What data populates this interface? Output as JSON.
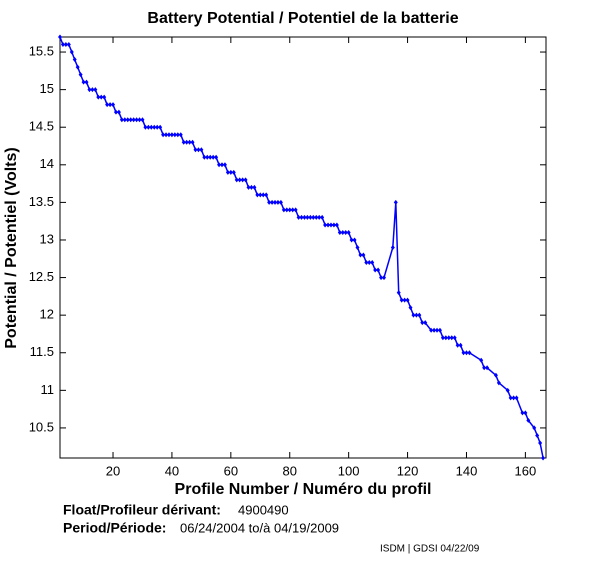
{
  "chart_data": {
    "type": "line",
    "title": "Battery Potential / Potentiel de la batterie",
    "xlabel": "Profile Number / Numéro du profil",
    "ylabel": "Potential / Potentiel (Volts)",
    "xlim": [
      2,
      167
    ],
    "xticks": [
      20,
      40,
      60,
      80,
      100,
      120,
      140,
      160
    ],
    "ylim": [
      10.1,
      15.7
    ],
    "yticks": [
      10.5,
      11,
      11.5,
      12,
      12.5,
      13,
      13.5,
      14,
      14.5,
      15,
      15.5
    ],
    "color": "#0000ff",
    "x": [
      2,
      3,
      4,
      5,
      6,
      7,
      8,
      9,
      10,
      11,
      12,
      13,
      14,
      15,
      16,
      17,
      18,
      19,
      20,
      21,
      22,
      23,
      24,
      25,
      26,
      27,
      28,
      29,
      30,
      31,
      32,
      33,
      34,
      35,
      36,
      37,
      38,
      39,
      40,
      41,
      42,
      43,
      44,
      45,
      46,
      47,
      48,
      49,
      50,
      51,
      52,
      53,
      54,
      55,
      56,
      57,
      58,
      59,
      60,
      61,
      62,
      63,
      64,
      65,
      66,
      67,
      68,
      69,
      70,
      71,
      72,
      73,
      74,
      75,
      76,
      77,
      78,
      79,
      80,
      81,
      82,
      83,
      84,
      85,
      86,
      87,
      88,
      89,
      90,
      91,
      92,
      93,
      94,
      95,
      96,
      97,
      98,
      99,
      100,
      101,
      102,
      103,
      104,
      105,
      106,
      107,
      108,
      109,
      110,
      111,
      112,
      115,
      116,
      117,
      118,
      119,
      120,
      121,
      122,
      123,
      124,
      125,
      126,
      128,
      129,
      130,
      131,
      132,
      133,
      134,
      135,
      136,
      137,
      138,
      139,
      140,
      141,
      145,
      146,
      147,
      150,
      151,
      154,
      155,
      156,
      157,
      159,
      160,
      161,
      163,
      164,
      165,
      166
    ],
    "values": [
      15.7,
      15.6,
      15.6,
      15.6,
      15.5,
      15.4,
      15.3,
      15.2,
      15.1,
      15.1,
      15.0,
      15.0,
      15.0,
      14.9,
      14.9,
      14.9,
      14.8,
      14.8,
      14.8,
      14.7,
      14.7,
      14.6,
      14.6,
      14.6,
      14.6,
      14.6,
      14.6,
      14.6,
      14.6,
      14.5,
      14.5,
      14.5,
      14.5,
      14.5,
      14.5,
      14.4,
      14.4,
      14.4,
      14.4,
      14.4,
      14.4,
      14.4,
      14.3,
      14.3,
      14.3,
      14.3,
      14.2,
      14.2,
      14.2,
      14.1,
      14.1,
      14.1,
      14.1,
      14.1,
      14.0,
      14.0,
      14.0,
      13.9,
      13.9,
      13.9,
      13.8,
      13.8,
      13.8,
      13.8,
      13.7,
      13.7,
      13.7,
      13.6,
      13.6,
      13.6,
      13.6,
      13.5,
      13.5,
      13.5,
      13.5,
      13.5,
      13.4,
      13.4,
      13.4,
      13.4,
      13.4,
      13.3,
      13.3,
      13.3,
      13.3,
      13.3,
      13.3,
      13.3,
      13.3,
      13.3,
      13.2,
      13.2,
      13.2,
      13.2,
      13.2,
      13.1,
      13.1,
      13.1,
      13.1,
      13.0,
      13.0,
      12.9,
      12.8,
      12.8,
      12.7,
      12.7,
      12.7,
      12.6,
      12.6,
      12.5,
      12.5,
      12.9,
      13.5,
      12.3,
      12.2,
      12.2,
      12.2,
      12.1,
      12.0,
      12.0,
      12.0,
      11.9,
      11.9,
      11.8,
      11.8,
      11.8,
      11.8,
      11.7,
      11.7,
      11.7,
      11.7,
      11.7,
      11.6,
      11.6,
      11.5,
      11.5,
      11.5,
      11.4,
      11.3,
      11.3,
      11.2,
      11.1,
      11.0,
      10.9,
      10.9,
      10.9,
      10.7,
      10.7,
      10.6,
      10.5,
      10.4,
      10.3,
      10.1
    ]
  },
  "info": {
    "float_label": "Float/Profileur dérivant:",
    "float_value": "4900490",
    "period_label": "Period/Période:",
    "period_value": "06/24/2004 to/à 04/19/2009",
    "credit": "ISDM | GDSI 04/22/09"
  }
}
